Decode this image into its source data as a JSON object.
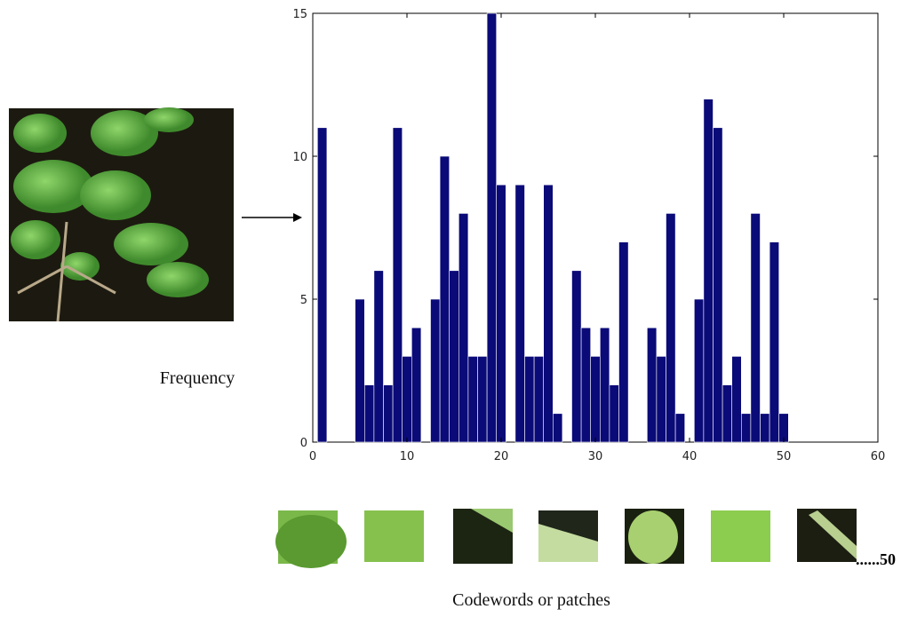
{
  "chart_data": {
    "type": "bar",
    "ylabel": "Frequency",
    "xlabel": "Codewords or patches",
    "annotation": "......50",
    "x": [
      1,
      5,
      6,
      7,
      8,
      9,
      10,
      11,
      13,
      14,
      15,
      16,
      17,
      18,
      19,
      20,
      22,
      23,
      24,
      25,
      26,
      28,
      29,
      30,
      31,
      32,
      33,
      36,
      37,
      38,
      39,
      41,
      42,
      43,
      44,
      45,
      46,
      47,
      48,
      49,
      50
    ],
    "values": [
      11,
      5,
      2,
      6,
      2,
      11,
      3,
      4,
      5,
      10,
      6,
      8,
      3,
      3,
      15,
      9,
      9,
      3,
      3,
      9,
      1,
      6,
      4,
      3,
      4,
      2,
      7,
      4,
      3,
      8,
      1,
      5,
      12,
      11,
      2,
      3,
      1,
      8,
      1,
      7,
      1
    ],
    "color": "#0a0a78",
    "xlim": [
      0,
      60
    ],
    "xticks": [
      0,
      10,
      20,
      30,
      40,
      50,
      60
    ],
    "ylim": [
      0,
      15
    ],
    "yticks": [
      0,
      5,
      10,
      15
    ]
  }
}
